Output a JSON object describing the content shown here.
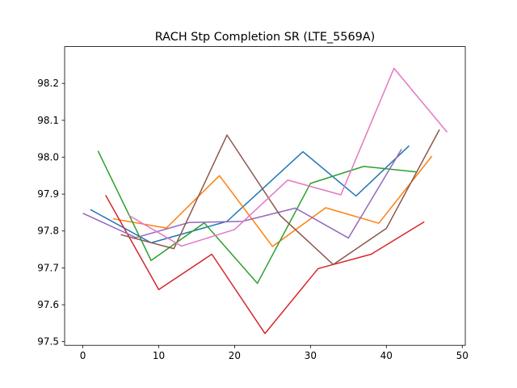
{
  "chart_data": {
    "type": "line",
    "title": "RACH Stp Completion SR (LTE_5569A)",
    "xlabel": "",
    "ylabel": "",
    "xlim": [
      -2.4,
      50.4
    ],
    "ylim": [
      97.49,
      98.3
    ],
    "x_ticks": [
      0,
      10,
      20,
      30,
      40,
      50
    ],
    "y_ticks": [
      97.5,
      97.6,
      97.7,
      97.8,
      97.9,
      98.0,
      98.1,
      98.2
    ],
    "x_tick_labels": [
      "0",
      "10",
      "20",
      "30",
      "40",
      "50"
    ],
    "y_tick_labels": [
      "97.5",
      "97.6",
      "97.7",
      "97.8",
      "97.9",
      "98.0",
      "98.1",
      "98.2"
    ],
    "grid": false,
    "legend": "none",
    "series": [
      {
        "color": "#1f77b4",
        "x": [
          1,
          9,
          19,
          29,
          36,
          43
        ],
        "y": [
          97.858,
          97.768,
          97.826,
          98.015,
          97.895,
          98.031
        ]
      },
      {
        "color": "#ff7f0e",
        "x": [
          4,
          11,
          18,
          25,
          32,
          39,
          46
        ],
        "y": [
          97.833,
          97.808,
          97.95,
          97.758,
          97.863,
          97.821,
          98.003
        ]
      },
      {
        "color": "#2ca02c",
        "x": [
          2,
          9,
          16,
          23,
          30,
          37,
          44
        ],
        "y": [
          98.017,
          97.72,
          97.822,
          97.658,
          97.929,
          97.975,
          97.96
        ]
      },
      {
        "color": "#d62728",
        "x": [
          3,
          10,
          17,
          24,
          31,
          38,
          45
        ],
        "y": [
          97.897,
          97.641,
          97.737,
          97.522,
          97.698,
          97.737,
          97.825
        ]
      },
      {
        "color": "#9467bd",
        "x": [
          0,
          7,
          14,
          21,
          28,
          35,
          42
        ],
        "y": [
          97.848,
          97.782,
          97.823,
          97.826,
          97.862,
          97.781,
          98.022
        ]
      },
      {
        "color": "#8c564b",
        "x": [
          5,
          12,
          19,
          26,
          33,
          40,
          47
        ],
        "y": [
          97.79,
          97.752,
          98.06,
          97.842,
          97.709,
          97.807,
          98.075
        ]
      },
      {
        "color": "#e377c2",
        "x": [
          6,
          13,
          20,
          27,
          34,
          41,
          48
        ],
        "y": [
          97.843,
          97.759,
          97.804,
          97.938,
          97.898,
          98.241,
          98.068
        ]
      }
    ]
  }
}
